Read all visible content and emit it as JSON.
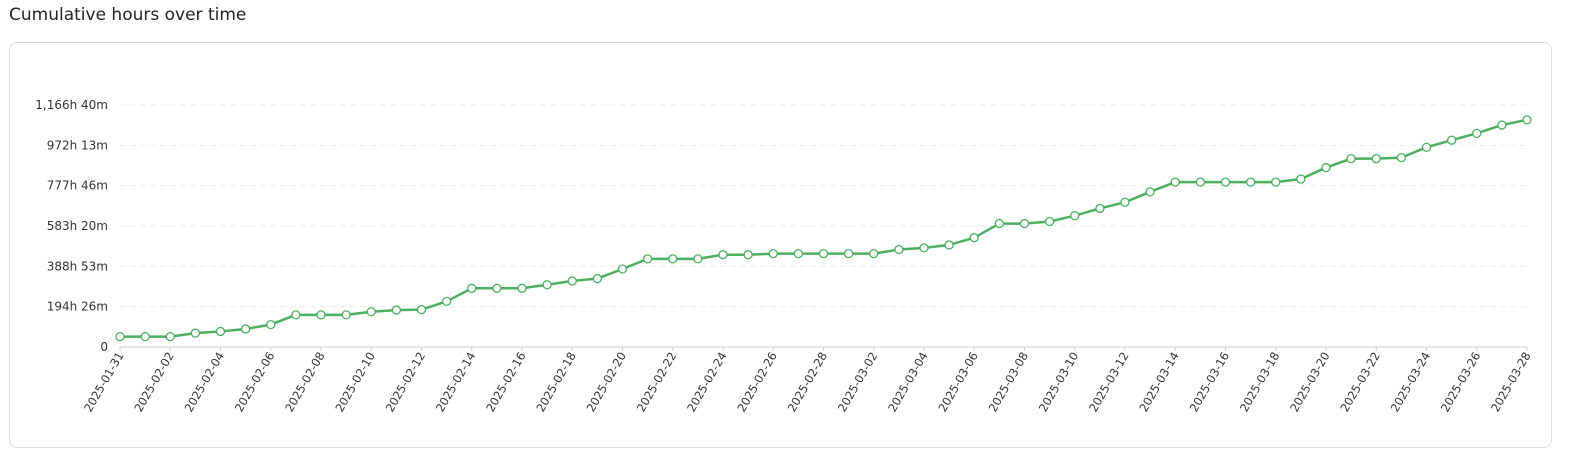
{
  "header": {
    "title": "Cumulative hours over time"
  },
  "colors": {
    "line": "#4caf5f",
    "point_fill": "#ffffff",
    "grid": "#ececec",
    "axis": "#cfcfcf"
  },
  "chart_data": {
    "type": "line",
    "title": "",
    "xlabel": "",
    "ylabel": "",
    "ylim": [
      0,
      1166.67
    ],
    "grid": true,
    "yticks": [
      {
        "value": 0,
        "label": "0"
      },
      {
        "value": 194.43,
        "label": "194h 26m"
      },
      {
        "value": 388.88,
        "label": "388h 53m"
      },
      {
        "value": 583.33,
        "label": "583h 20m"
      },
      {
        "value": 777.77,
        "label": "777h 46m"
      },
      {
        "value": 972.22,
        "label": "972h 13m"
      },
      {
        "value": 1166.67,
        "label": "1,166h 40m"
      }
    ],
    "xtick_labels": [
      "2025-01-31",
      "2025-02-02",
      "2025-02-04",
      "2025-02-06",
      "2025-02-08",
      "2025-02-10",
      "2025-02-12",
      "2025-02-14",
      "2025-02-16",
      "2025-02-18",
      "2025-02-20",
      "2025-02-22",
      "2025-02-24",
      "2025-02-26",
      "2025-02-28",
      "2025-03-02",
      "2025-03-04",
      "2025-03-06",
      "2025-03-08",
      "2025-03-10",
      "2025-03-12",
      "2025-03-14",
      "2025-03-16",
      "2025-03-18",
      "2025-03-20",
      "2025-03-22",
      "2025-03-24",
      "2025-03-26",
      "2025-03-28"
    ],
    "x": [
      "2025-01-31",
      "2025-02-01",
      "2025-02-02",
      "2025-02-03",
      "2025-02-04",
      "2025-02-05",
      "2025-02-06",
      "2025-02-07",
      "2025-02-08",
      "2025-02-09",
      "2025-02-10",
      "2025-02-11",
      "2025-02-12",
      "2025-02-13",
      "2025-02-14",
      "2025-02-15",
      "2025-02-16",
      "2025-02-17",
      "2025-02-18",
      "2025-02-19",
      "2025-02-20",
      "2025-02-21",
      "2025-02-22",
      "2025-02-23",
      "2025-02-24",
      "2025-02-25",
      "2025-02-26",
      "2025-02-27",
      "2025-02-28",
      "2025-03-01",
      "2025-03-02",
      "2025-03-03",
      "2025-03-04",
      "2025-03-05",
      "2025-03-06",
      "2025-03-07",
      "2025-03-08",
      "2025-03-09",
      "2025-03-10",
      "2025-03-11",
      "2025-03-12",
      "2025-03-13",
      "2025-03-14",
      "2025-03-15",
      "2025-03-16",
      "2025-03-17",
      "2025-03-18",
      "2025-03-19",
      "2025-03-20",
      "2025-03-21",
      "2025-03-22",
      "2025-03-23",
      "2025-03-24",
      "2025-03-25",
      "2025-03-26",
      "2025-03-27",
      "2025-03-28"
    ],
    "series": [
      {
        "values": [
          50,
          50,
          50,
          67,
          75,
          87,
          108,
          155,
          155,
          155,
          170,
          178,
          180,
          220,
          283,
          283,
          283,
          300,
          318,
          330,
          376,
          425,
          425,
          425,
          445,
          445,
          450,
          450,
          450,
          450,
          450,
          470,
          478,
          492,
          527,
          595,
          595,
          605,
          633,
          668,
          698,
          748,
          795,
          795,
          795,
          795,
          795,
          810,
          865,
          908,
          908,
          913,
          963,
          997,
          1030,
          1070,
          1095
        ]
      }
    ]
  }
}
